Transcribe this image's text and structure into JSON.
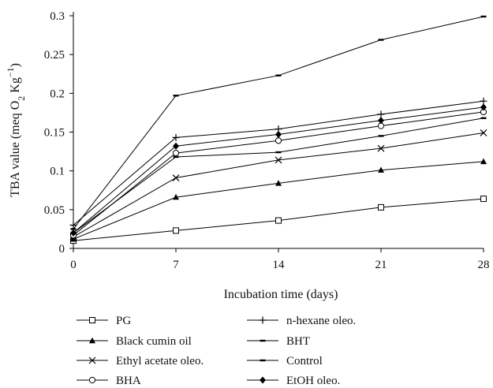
{
  "chart_data": {
    "type": "line",
    "xlabel": "Incubation time (days)",
    "ylabel": {
      "prefix": "TBA value (meq O",
      "sub": "2",
      "mid": " Kg",
      "sup": "−1",
      "suffix": ")"
    },
    "x": [
      0,
      7,
      14,
      21,
      28
    ],
    "x_ticks": [
      "0",
      "7",
      "14",
      "21",
      "28"
    ],
    "y_ticks": [
      "0",
      "0.05",
      "0.1",
      "0.15",
      "0.2",
      "0.25",
      "0.3"
    ],
    "xlim": [
      0,
      28
    ],
    "ylim": [
      0,
      0.3
    ],
    "grid": false,
    "legend_position": "bottom",
    "series": [
      {
        "name": "PG",
        "marker": "open-square",
        "values": [
          0.01,
          0.023,
          0.036,
          0.053,
          0.064
        ]
      },
      {
        "name": "Black cumin oil",
        "marker": "filled-triangle",
        "values": [
          0.012,
          0.066,
          0.084,
          0.101,
          0.112
        ]
      },
      {
        "name": "Ethyl acetate oleo.",
        "marker": "x",
        "values": [
          0.015,
          0.091,
          0.114,
          0.129,
          0.149
        ]
      },
      {
        "name": "BHA",
        "marker": "open-circle",
        "values": [
          0.017,
          0.123,
          0.139,
          0.158,
          0.176
        ]
      },
      {
        "name": "n-hexane oleo.",
        "marker": "plus",
        "values": [
          0.03,
          0.143,
          0.154,
          0.173,
          0.19
        ]
      },
      {
        "name": "BHT",
        "marker": "dash",
        "values": [
          0.02,
          0.118,
          0.124,
          0.145,
          0.168
        ]
      },
      {
        "name": "Control",
        "marker": "dash",
        "values": [
          0.025,
          0.197,
          0.223,
          0.269,
          0.299
        ]
      },
      {
        "name": "EtOH oleo.",
        "marker": "filled-diamond",
        "values": [
          0.02,
          0.132,
          0.147,
          0.165,
          0.182
        ]
      }
    ]
  }
}
